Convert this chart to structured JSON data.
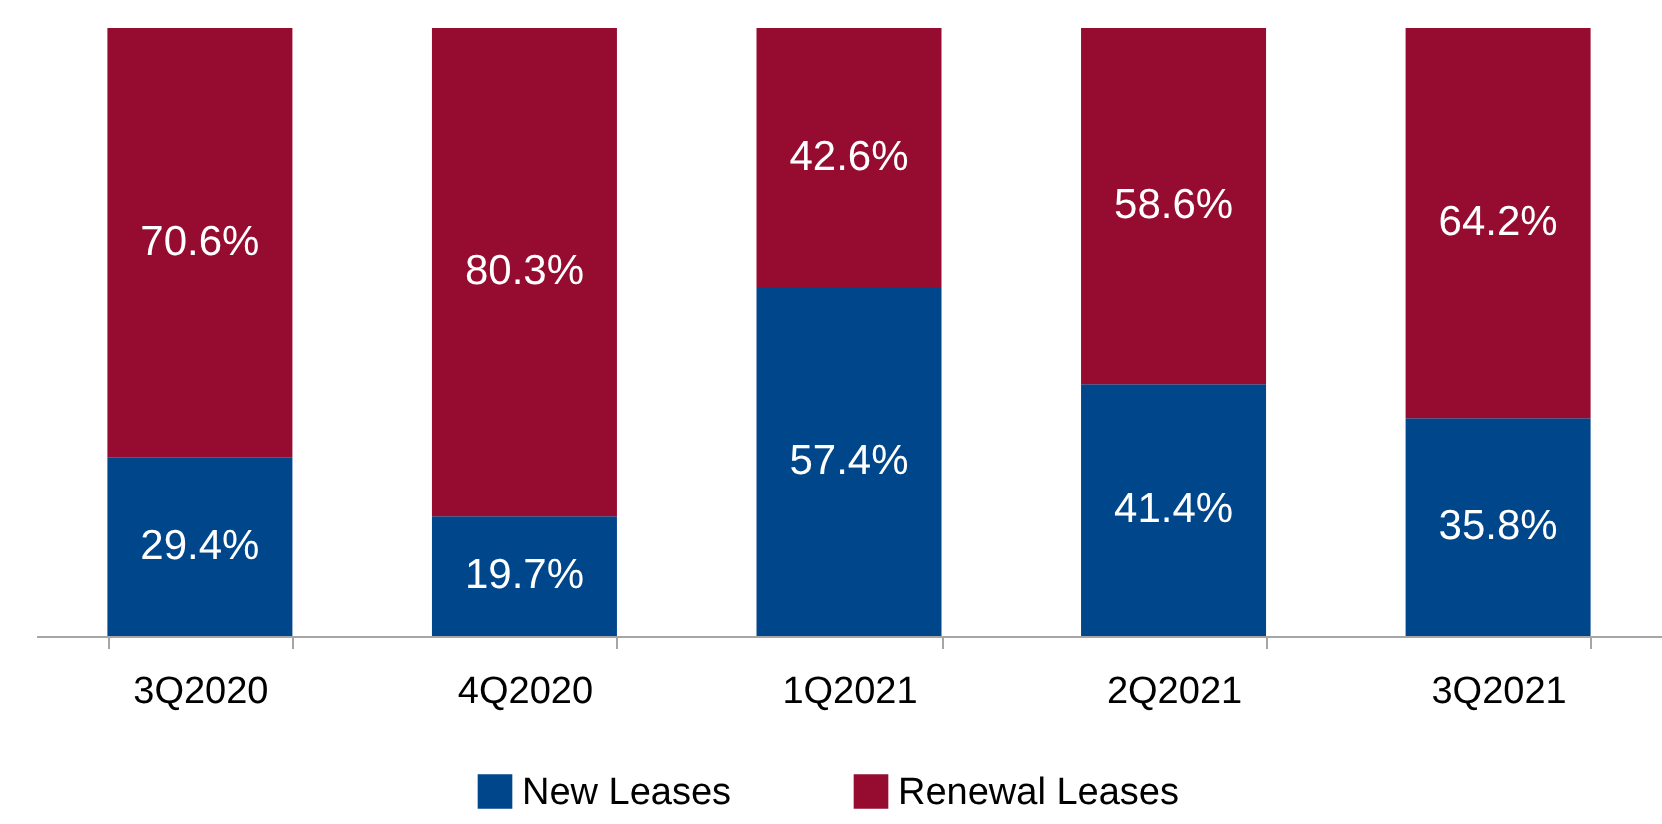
{
  "chart_data": {
    "type": "bar",
    "stacked": true,
    "categories": [
      "3Q2020",
      "4Q2020",
      "1Q2021",
      "2Q2021",
      "3Q2021"
    ],
    "series": [
      {
        "name": "New Leases",
        "color": "#00468b",
        "values": [
          29.4,
          19.7,
          57.4,
          41.4,
          35.8
        ],
        "value_labels": [
          "29.4%",
          "19.7%",
          "57.4%",
          "41.4%",
          "35.8%"
        ]
      },
      {
        "name": "Renewal Leases",
        "color": "#960c31",
        "values": [
          70.6,
          80.3,
          42.6,
          58.6,
          64.2
        ],
        "value_labels": [
          "70.6%",
          "80.3%",
          "42.6%",
          "58.6%",
          "64.2%"
        ]
      }
    ],
    "ylim": [
      0,
      100
    ],
    "legend": "bottom",
    "tick_labels": "x"
  }
}
